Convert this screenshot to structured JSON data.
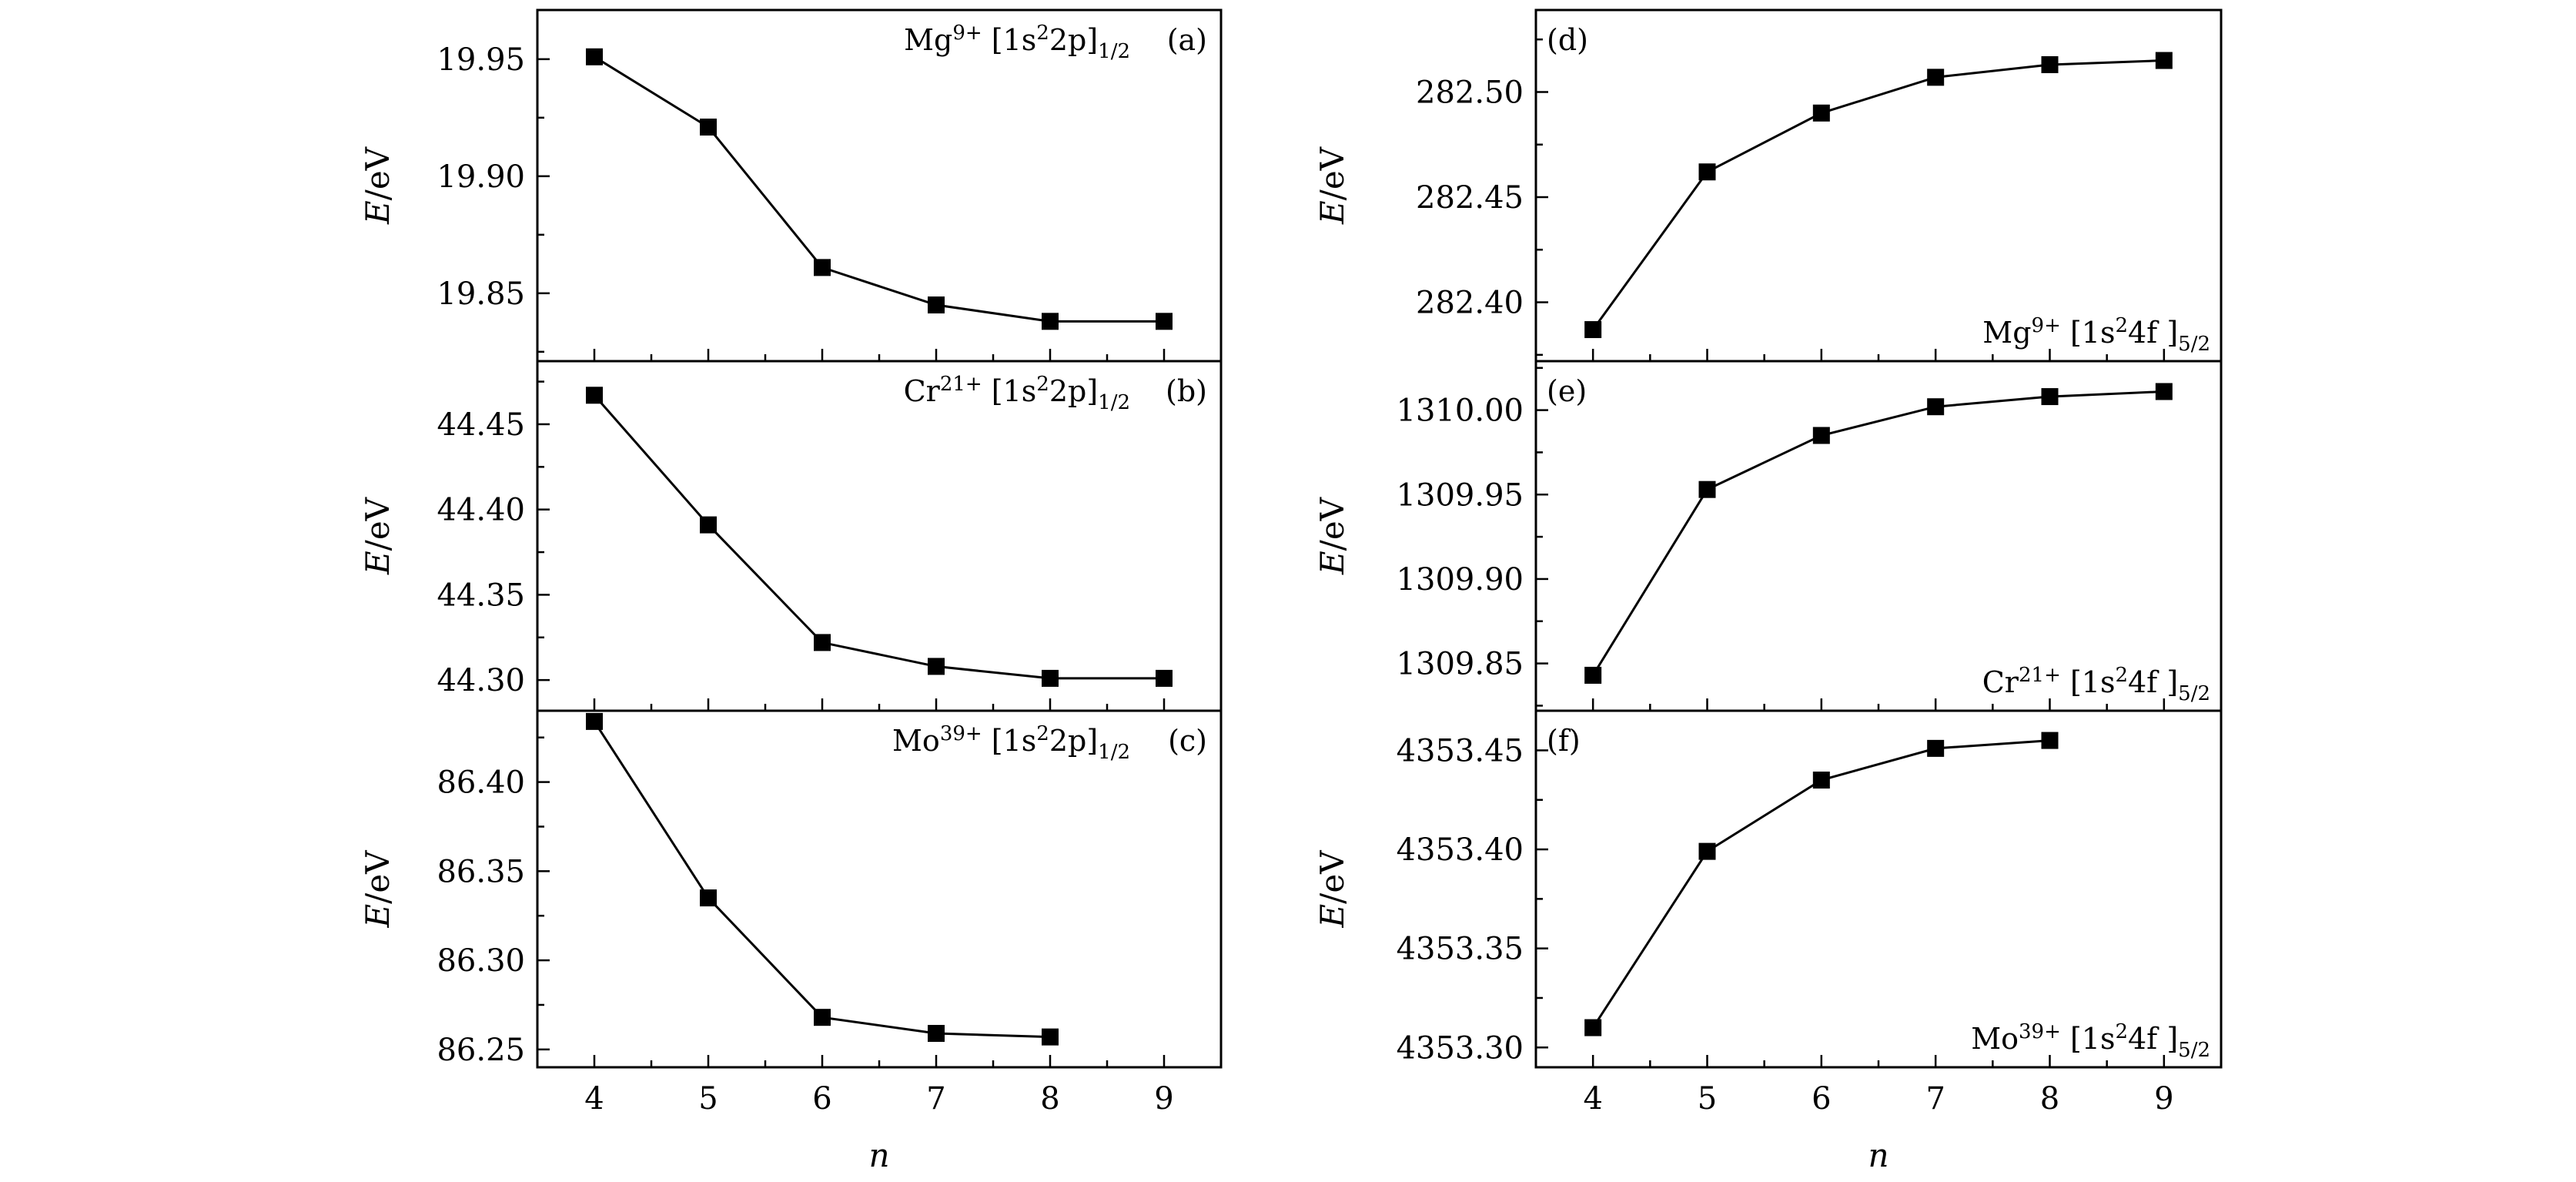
{
  "chart_data": [
    {
      "id": "a",
      "type": "line",
      "tag": "(a)",
      "ion": "Mg",
      "charge": "9+",
      "config_pre": "[1s",
      "config_sup": "2",
      "config_post": "2p]",
      "config_sub": "1/2",
      "label_pos": "top-right",
      "x": [
        4,
        5,
        6,
        7,
        8,
        9
      ],
      "y": [
        19.951,
        19.921,
        19.861,
        19.845,
        19.838,
        19.838
      ],
      "ylim": [
        19.821,
        19.971
      ],
      "yticks": [
        "19.85",
        "19.90",
        "19.95"
      ],
      "ylabel_italic": "E",
      "ylabel_unit": "/eV"
    },
    {
      "id": "b",
      "type": "line",
      "tag": "(b)",
      "ion": "Cr",
      "charge": "21+",
      "config_pre": "[1s",
      "config_sup": "2",
      "config_post": "2p]",
      "config_sub": "1/2",
      "label_pos": "top-right",
      "x": [
        4,
        5,
        6,
        7,
        8,
        9
      ],
      "y": [
        44.467,
        44.391,
        44.322,
        44.308,
        44.301,
        44.301
      ],
      "ylim": [
        44.282,
        44.487
      ],
      "yticks": [
        "44.30",
        "44.35",
        "44.40",
        "44.45"
      ],
      "ylabel_italic": "E",
      "ylabel_unit": "/eV"
    },
    {
      "id": "c",
      "type": "line",
      "tag": "(c)",
      "ion": "Mo",
      "charge": "39+",
      "config_pre": "[1s",
      "config_sup": "2",
      "config_post": "2p]",
      "config_sub": "1/2",
      "label_pos": "top-right",
      "x": [
        4,
        5,
        6,
        7,
        8
      ],
      "y": [
        86.434,
        86.335,
        86.268,
        86.259,
        86.257
      ],
      "ylim": [
        86.24,
        86.44
      ],
      "yticks": [
        "86.25",
        "86.30",
        "86.35",
        "86.40"
      ],
      "ylabel_italic": "E",
      "ylabel_unit": "/eV",
      "xlabel": "n",
      "xticks": [
        "4",
        "5",
        "6",
        "7",
        "8",
        "9"
      ]
    },
    {
      "id": "d",
      "type": "line",
      "tag": "(d)",
      "ion": "Mg",
      "charge": "9+",
      "config_pre": "[1s",
      "config_sup": "2",
      "config_post": "4f ]",
      "config_sub": "5/2",
      "label_pos": "bottom-right",
      "x": [
        4,
        5,
        6,
        7,
        8,
        9
      ],
      "y": [
        282.387,
        282.462,
        282.49,
        282.507,
        282.513,
        282.515
      ],
      "ylim": [
        282.372,
        282.539
      ],
      "yticks": [
        "282.40",
        "282.45",
        "282.50"
      ],
      "ylabel_italic": "E",
      "ylabel_unit": "/eV"
    },
    {
      "id": "e",
      "type": "line",
      "tag": "(e)",
      "ion": "Cr",
      "charge": "21+",
      "config_pre": "[1s",
      "config_sup": "2",
      "config_post": "4f ]",
      "config_sub": "5/2",
      "label_pos": "bottom-right",
      "x": [
        4,
        5,
        6,
        7,
        8,
        9
      ],
      "y": [
        1309.843,
        1309.953,
        1309.985,
        1310.002,
        1310.008,
        1310.011
      ],
      "ylim": [
        1309.822,
        1310.029
      ],
      "yticks": [
        "1309.85",
        "1309.90",
        "1309.95",
        "1310.00"
      ],
      "ylabel_italic": "E",
      "ylabel_unit": "/eV"
    },
    {
      "id": "f",
      "type": "line",
      "tag": "(f)",
      "ion": "Mo",
      "charge": "39+",
      "config_pre": "[1s",
      "config_sup": "2",
      "config_post": "4f ]",
      "config_sub": "5/2",
      "label_pos": "bottom-right",
      "x": [
        4,
        5,
        6,
        7,
        8
      ],
      "y": [
        4353.31,
        4353.399,
        4353.435,
        4353.451,
        4353.455
      ],
      "ylim": [
        4353.29,
        4353.47
      ],
      "yticks": [
        "4353.30",
        "4353.35",
        "4353.40",
        "4353.45"
      ],
      "ylabel_italic": "E",
      "ylabel_unit": "/eV",
      "xlabel": "n",
      "xticks": [
        "4",
        "5",
        "6",
        "7",
        "8",
        "9"
      ]
    }
  ],
  "xlim": [
    3.5,
    9.5
  ]
}
